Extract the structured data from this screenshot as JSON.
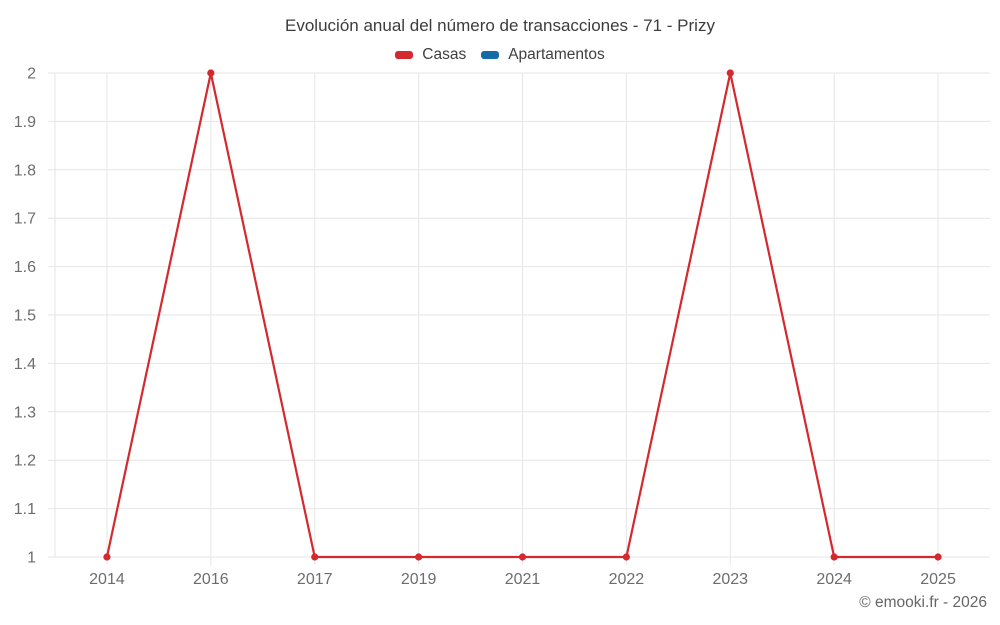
{
  "header": {
    "title": "Evolución anual del número de transacciones - 71 - Prizy"
  },
  "legend": {
    "items": [
      {
        "label": "Casas",
        "color": "#d4292e"
      },
      {
        "label": "Apartamentos",
        "color": "#146ca4"
      }
    ]
  },
  "axes": {
    "y_tick_labels": [
      "1",
      "1.1",
      "1.2",
      "1.3",
      "1.4",
      "1.5",
      "1.6",
      "1.7",
      "1.8",
      "1.9",
      "2"
    ],
    "x_tick_labels": [
      "2014",
      "2016",
      "2017",
      "2019",
      "2021",
      "2022",
      "2023",
      "2024",
      "2025"
    ]
  },
  "footer": {
    "copyright": "© emooki.fr - 2026"
  },
  "colors": {
    "casas": "#d4292e",
    "apartamentos": "#146ca4",
    "gridline": "#e6e6e6",
    "axis_label": "#6d6d6d",
    "title_text": "#3c3c3c"
  },
  "chart_data": {
    "type": "line",
    "title": "Evolución anual del número de transacciones - 71 - Prizy",
    "categories": [
      "2014",
      "2016",
      "2017",
      "2019",
      "2021",
      "2022",
      "2023",
      "2024",
      "2025"
    ],
    "series": [
      {
        "name": "Casas",
        "color": "#d4292e",
        "values": [
          1,
          2,
          1,
          1,
          1,
          1,
          2,
          1,
          1
        ]
      },
      {
        "name": "Apartamentos",
        "color": "#146ca4",
        "values": []
      }
    ],
    "ylim": [
      1,
      2
    ],
    "ytick_step": 0.1,
    "grid": true,
    "legend_position": "top",
    "marker": "circle"
  }
}
